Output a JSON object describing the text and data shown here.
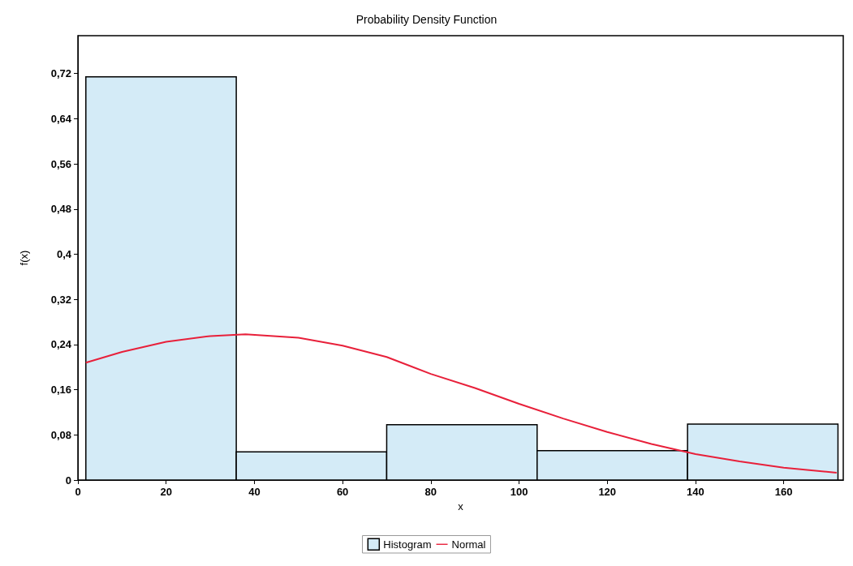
{
  "chart_data": {
    "type": "histogram",
    "title": "Probability Density Function",
    "xlabel": "x",
    "ylabel": "f(x)",
    "bins": [
      1.8,
      35.9,
      70,
      104.1,
      138.2,
      172.3
    ],
    "series": [
      {
        "name": "Histogram",
        "color": "#d4ebf7",
        "values": [
          0.714,
          0.05,
          0.098,
          0.052,
          0.099
        ]
      },
      {
        "name": "Normal",
        "type": "line",
        "color": "#e8203a",
        "x": [
          1.8,
          10,
          20,
          30,
          38,
          50,
          60,
          70,
          80,
          90,
          100,
          110,
          120,
          130,
          140,
          150,
          160,
          172
        ],
        "values": [
          0.208,
          0.227,
          0.245,
          0.255,
          0.258,
          0.252,
          0.238,
          0.218,
          0.188,
          0.163,
          0.135,
          0.109,
          0.085,
          0.064,
          0.046,
          0.033,
          0.022,
          0.013
        ]
      }
    ],
    "xlim": [
      0,
      173.5
    ],
    "xticks": [
      0,
      20,
      40,
      60,
      80,
      100,
      120,
      140,
      160
    ],
    "ylim": [
      0,
      0.787
    ],
    "yticks": [
      0,
      {
        "value": 0.08,
        "label": "0,08"
      },
      {
        "value": 0.16,
        "label": "0,16"
      },
      {
        "value": 0.24,
        "label": "0,24"
      },
      {
        "value": 0.32,
        "label": "0,32"
      },
      {
        "value": 0.4,
        "label": "0,4"
      },
      {
        "value": 0.48,
        "label": "0,48"
      },
      {
        "value": 0.56,
        "label": "0,56"
      },
      {
        "value": 0.64,
        "label": "0,64"
      },
      {
        "value": 0.72,
        "label": "0,72"
      }
    ],
    "grid": false,
    "legend": "bottom",
    "marker": "none",
    "line_style": "solid"
  }
}
